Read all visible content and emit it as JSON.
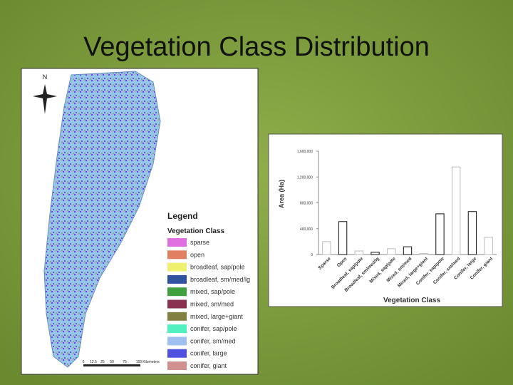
{
  "slide": {
    "title": "Vegetation Class Distribution"
  },
  "map": {
    "north": "N",
    "legend_title": "Legend",
    "legend_subtitle": "Vegetation Class",
    "legend": [
      {
        "label": "sparse",
        "color": "#e070e0"
      },
      {
        "label": "open",
        "color": "#e08060"
      },
      {
        "label": "broadleaf, sap/pole",
        "color": "#f0f070"
      },
      {
        "label": "broadleaf, sm/med/lg",
        "color": "#3050a0"
      },
      {
        "label": "mixed, sap/pole",
        "color": "#40a040"
      },
      {
        "label": "mixed, sm/med",
        "color": "#8a3050"
      },
      {
        "label": "mixed, large+giant",
        "color": "#808040"
      },
      {
        "label": "conifer, sap/pole",
        "color": "#50f0c0"
      },
      {
        "label": "conifer, sm/med",
        "color": "#a0c0f0"
      },
      {
        "label": "conifer, large",
        "color": "#5050e0"
      },
      {
        "label": "conifer, giant",
        "color": "#d09090"
      }
    ],
    "scale_labels": [
      "0",
      "12.5",
      "25",
      "50",
      "75",
      "100",
      "Kilometers"
    ]
  },
  "chart_data": {
    "type": "bar",
    "x_label": "Vegetation Class",
    "y_label": "Area (Ha)",
    "categories": [
      "Sparse",
      "Open",
      "Broadleaf, sap/pole",
      "Broadleaf, sm/med/lg",
      "Mixed, sap/pole",
      "Mixed, sm/med",
      "Mixed, large+giant",
      "Conifer, sap/pole",
      "Conifer, sm/med",
      "Conifer, large",
      "Conifer, giant"
    ],
    "values": [
      200000,
      510000,
      55000,
      35000,
      90000,
      120000,
      15000,
      630000,
      1355000,
      665000,
      265000
    ],
    "colors": [
      "#bbbbbb",
      "#111111",
      "#bbbbbb",
      "#111111",
      "#bbbbbb",
      "#111111",
      "#bbbbbb",
      "#111111",
      "#bbbbbb",
      "#111111",
      "#bbbbbb"
    ],
    "ylim": [
      0,
      1600000
    ],
    "yticks": [
      0,
      {
        "value": 400000,
        "label": "400,000"
      },
      {
        "value": 800000,
        "label": "800,000"
      },
      {
        "value": 1200000,
        "label": "1,200,000"
      },
      {
        "value": 1600000,
        "label": "1,600,000"
      }
    ]
  }
}
